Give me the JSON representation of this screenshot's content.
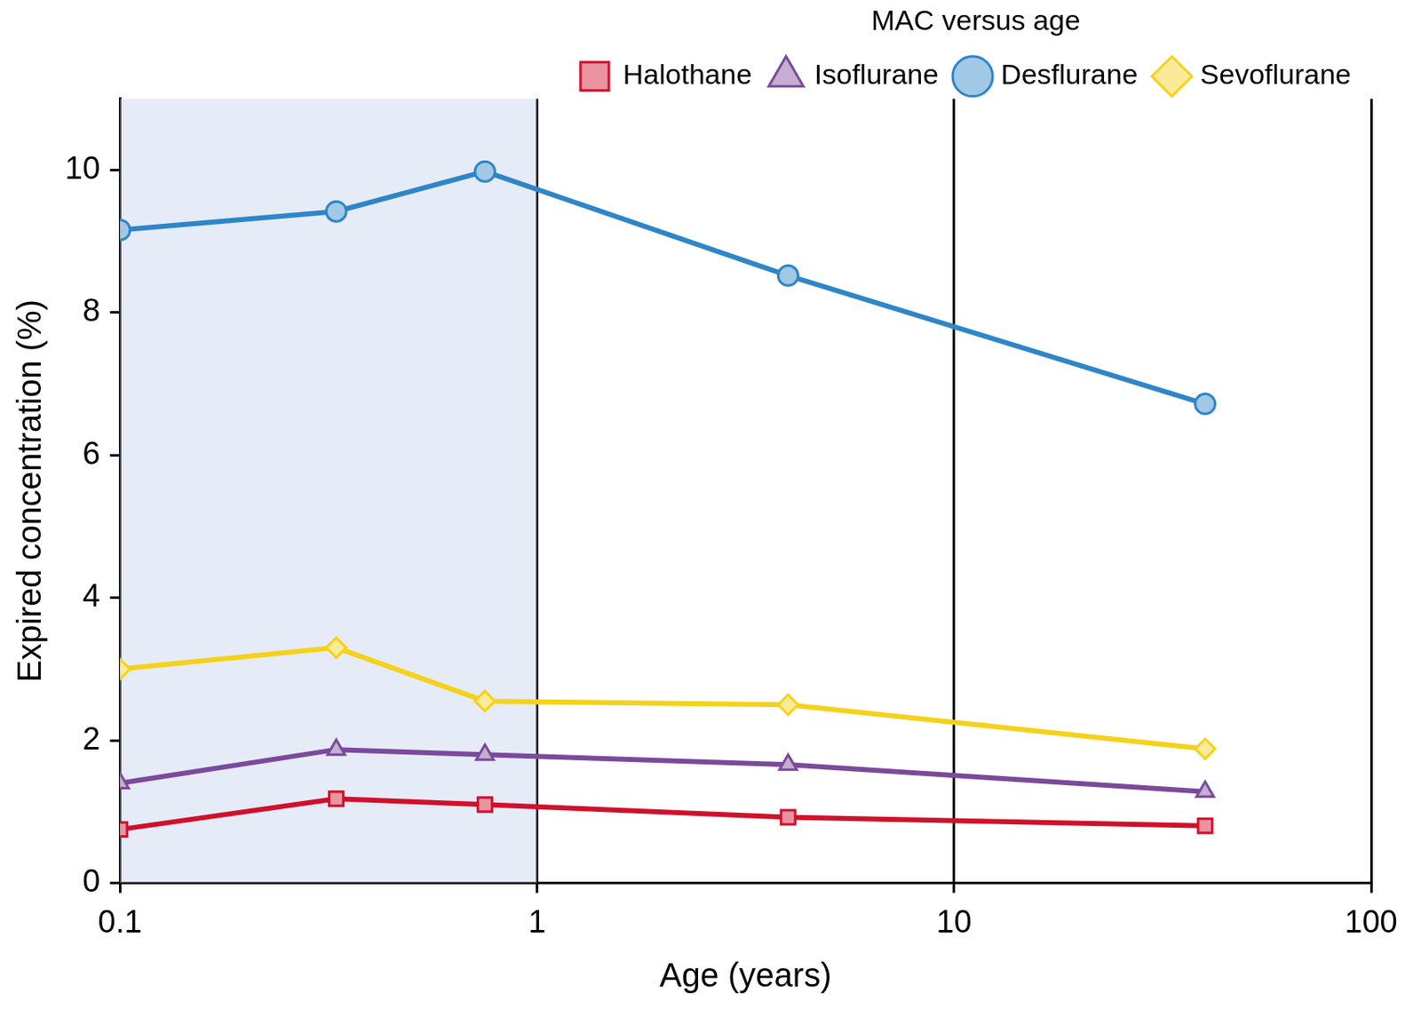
{
  "chart_data": {
    "type": "line",
    "x_label": "Age (years)",
    "y_label": "Expired concentration (%)",
    "legend_title": "MAC versus age",
    "x": [
      0.1,
      0.33,
      0.75,
      4,
      40
    ],
    "series": [
      {
        "name": "Halothane",
        "color": "#d0112b",
        "marker": "square",
        "values": [
          0.75,
          1.18,
          1.1,
          0.92,
          0.8
        ]
      },
      {
        "name": "Isoflurane",
        "color": "#7b4a9b",
        "marker": "triangle",
        "values": [
          1.4,
          1.87,
          1.8,
          1.66,
          1.28
        ]
      },
      {
        "name": "Desflurane",
        "color": "#2e86c8",
        "marker": "circle",
        "values": [
          9.16,
          9.42,
          9.98,
          8.52,
          6.72
        ]
      },
      {
        "name": "Sevoflurane",
        "color": "#f5d21a",
        "marker": "diamond",
        "values": [
          3.0,
          3.3,
          2.55,
          2.5,
          1.88
        ]
      }
    ],
    "log": "x",
    "xlim": [
      0.1,
      100
    ],
    "xticks": [
      0.1,
      1,
      10,
      100
    ],
    "ylim": [
      0,
      11
    ],
    "yticks": [
      0,
      2,
      4,
      6,
      8,
      10
    ],
    "highlight_x": [
      0.1,
      1
    ],
    "grid": "x",
    "legend": "top right"
  }
}
